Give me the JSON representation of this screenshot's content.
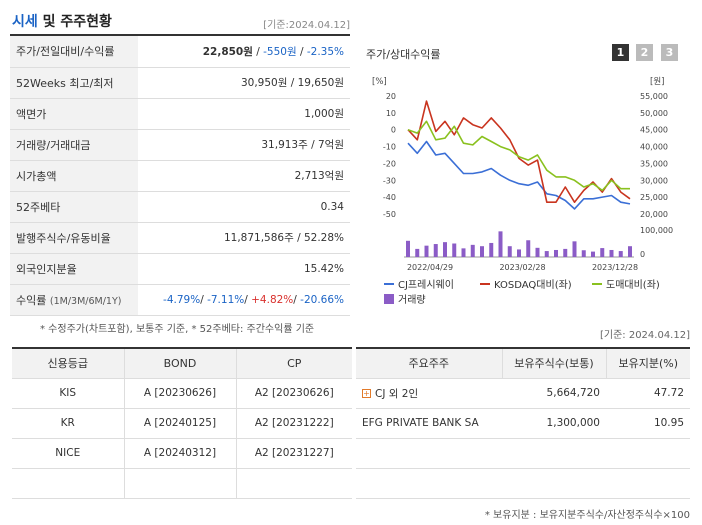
{
  "header": {
    "title_accent": "시세",
    "title_rest": " 및 주주현황",
    "basis": "[기준:2024.04.12]"
  },
  "info": {
    "rows": [
      {
        "key": "주가/전일대비/수익률"
      },
      {
        "key": "52Weeks 최고/최저",
        "value": "30,950원 / 19,650원"
      },
      {
        "key": "액면가",
        "value": "1,000원"
      },
      {
        "key": "거래량/거래대금",
        "value": "31,913주 / 7억원"
      },
      {
        "key": "시가총액",
        "value": "2,713억원"
      },
      {
        "key": "52주베타",
        "value": "0.34"
      },
      {
        "key": "발행주식수/유동비율",
        "value": "11,871,586주 / 52.28%"
      },
      {
        "key": "외국인지분율",
        "value": "15.42%"
      },
      {
        "key": "수익률",
        "key_sub": "(1M/3M/6M/1Y)"
      }
    ],
    "price": "22,850원",
    "change": "-550원",
    "rate": "-2.35%",
    "returns": [
      "-4.79%",
      "-7.11%",
      "+4.82%",
      "-20.66%"
    ],
    "sep": " / "
  },
  "note1": "* 수정주가(차트포함), 보통주 기준, * 52주베타: 주간수익률 기준",
  "chart": {
    "title": "주가/상대수익률",
    "buttons": [
      "1",
      "2",
      "3"
    ],
    "left_unit": "[%]",
    "right_unit": "[원]",
    "legend": [
      "CJ프레시웨이",
      "KOSDAQ대비(좌)",
      "도매대비(좌)",
      "거래량"
    ]
  },
  "chart_data": {
    "type": "line",
    "title": "",
    "x": [
      "2022/04",
      "2022/05",
      "2022/06",
      "2022/07",
      "2022/08",
      "2022/09",
      "2022/10",
      "2022/11",
      "2022/12",
      "2023/01",
      "2023/02",
      "2023/03",
      "2023/04",
      "2023/05",
      "2023/06",
      "2023/07",
      "2023/08",
      "2023/09",
      "2023/10",
      "2023/11",
      "2023/12",
      "2024/01",
      "2024/02",
      "2024/03",
      "2024/04"
    ],
    "x_tick_labels": [
      "2022/04/29",
      "2023/02/28",
      "2023/12/28"
    ],
    "y_left": {
      "ticks": [
        20,
        10,
        0,
        -10,
        -20,
        -30,
        -40,
        -50
      ],
      "range": [
        -50,
        20
      ]
    },
    "y_right": {
      "ticks": [
        "55,000",
        "50,000",
        "45,000",
        "40,000",
        "35,000",
        "30,000",
        "25,000",
        "20,000"
      ],
      "range": [
        20000,
        55000
      ]
    },
    "volume_axis": {
      "ticks": [
        "100,000",
        "0"
      ],
      "range": [
        0,
        100000
      ]
    },
    "series": [
      {
        "name": "CJ프레시웨이",
        "color": "#3b6fd6",
        "axis": "left",
        "values": [
          -8,
          -14,
          -7,
          -15,
          -14,
          -20,
          -26,
          -26,
          -25,
          -23,
          -27,
          -30,
          -32,
          -33,
          -31,
          -38,
          -39,
          -42,
          -47,
          -41,
          -41,
          -40,
          -39,
          -43,
          -44
        ]
      },
      {
        "name": "KOSDAQ대비(좌)",
        "color": "#c9341f",
        "axis": "left",
        "values": [
          0,
          -6,
          17,
          -1,
          5,
          -3,
          7,
          3,
          1,
          7,
          1,
          -6,
          -17,
          -21,
          -18,
          -43,
          -43,
          -34,
          -43,
          -36,
          -31,
          -37,
          -29,
          -37,
          -41
        ]
      },
      {
        "name": "도매대비(좌)",
        "color": "#8ac11f",
        "axis": "left",
        "values": [
          0,
          -2,
          5,
          -6,
          -5,
          2,
          -8,
          -9,
          -4,
          -7,
          -10,
          -12,
          -16,
          -18,
          -15,
          -24,
          -28,
          -28,
          -30,
          -34,
          -32,
          -36,
          -30,
          -35,
          -35
        ]
      },
      {
        "name": "거래량",
        "color": "#8b5cc6",
        "type": "bar",
        "axis": "volume",
        "values": [
          60000,
          30000,
          42000,
          48000,
          55000,
          50000,
          32000,
          45000,
          40000,
          52000,
          95000,
          40000,
          28000,
          62000,
          34000,
          22000,
          26000,
          30000,
          58000,
          25000,
          20000,
          33000,
          26000,
          22000,
          40000
        ]
      }
    ],
    "legend_position": "bottom",
    "grid": false
  },
  "basis2": "[기준: 2024.04.12]",
  "credit": {
    "headers": [
      "신용등급",
      "BOND",
      "CP"
    ],
    "rows": [
      [
        "KIS",
        "A  [20230626]",
        "A2  [20230626]"
      ],
      [
        "KR",
        "A  [20240125]",
        "A2  [20231222]"
      ],
      [
        "NICE",
        "A  [20240312]",
        "A2  [20231227]"
      ]
    ]
  },
  "holders": {
    "headers": [
      "주요주주",
      "보유주식수(보통)",
      "보유지분(%)"
    ],
    "rows": [
      [
        "CJ 외 2인",
        "5,664,720",
        "47.72"
      ],
      [
        "EFG PRIVATE BANK SA",
        "1,300,000",
        "10.95"
      ]
    ]
  },
  "note2": "* 보유지분 : 보유지분주식수/자산정주식수×100"
}
